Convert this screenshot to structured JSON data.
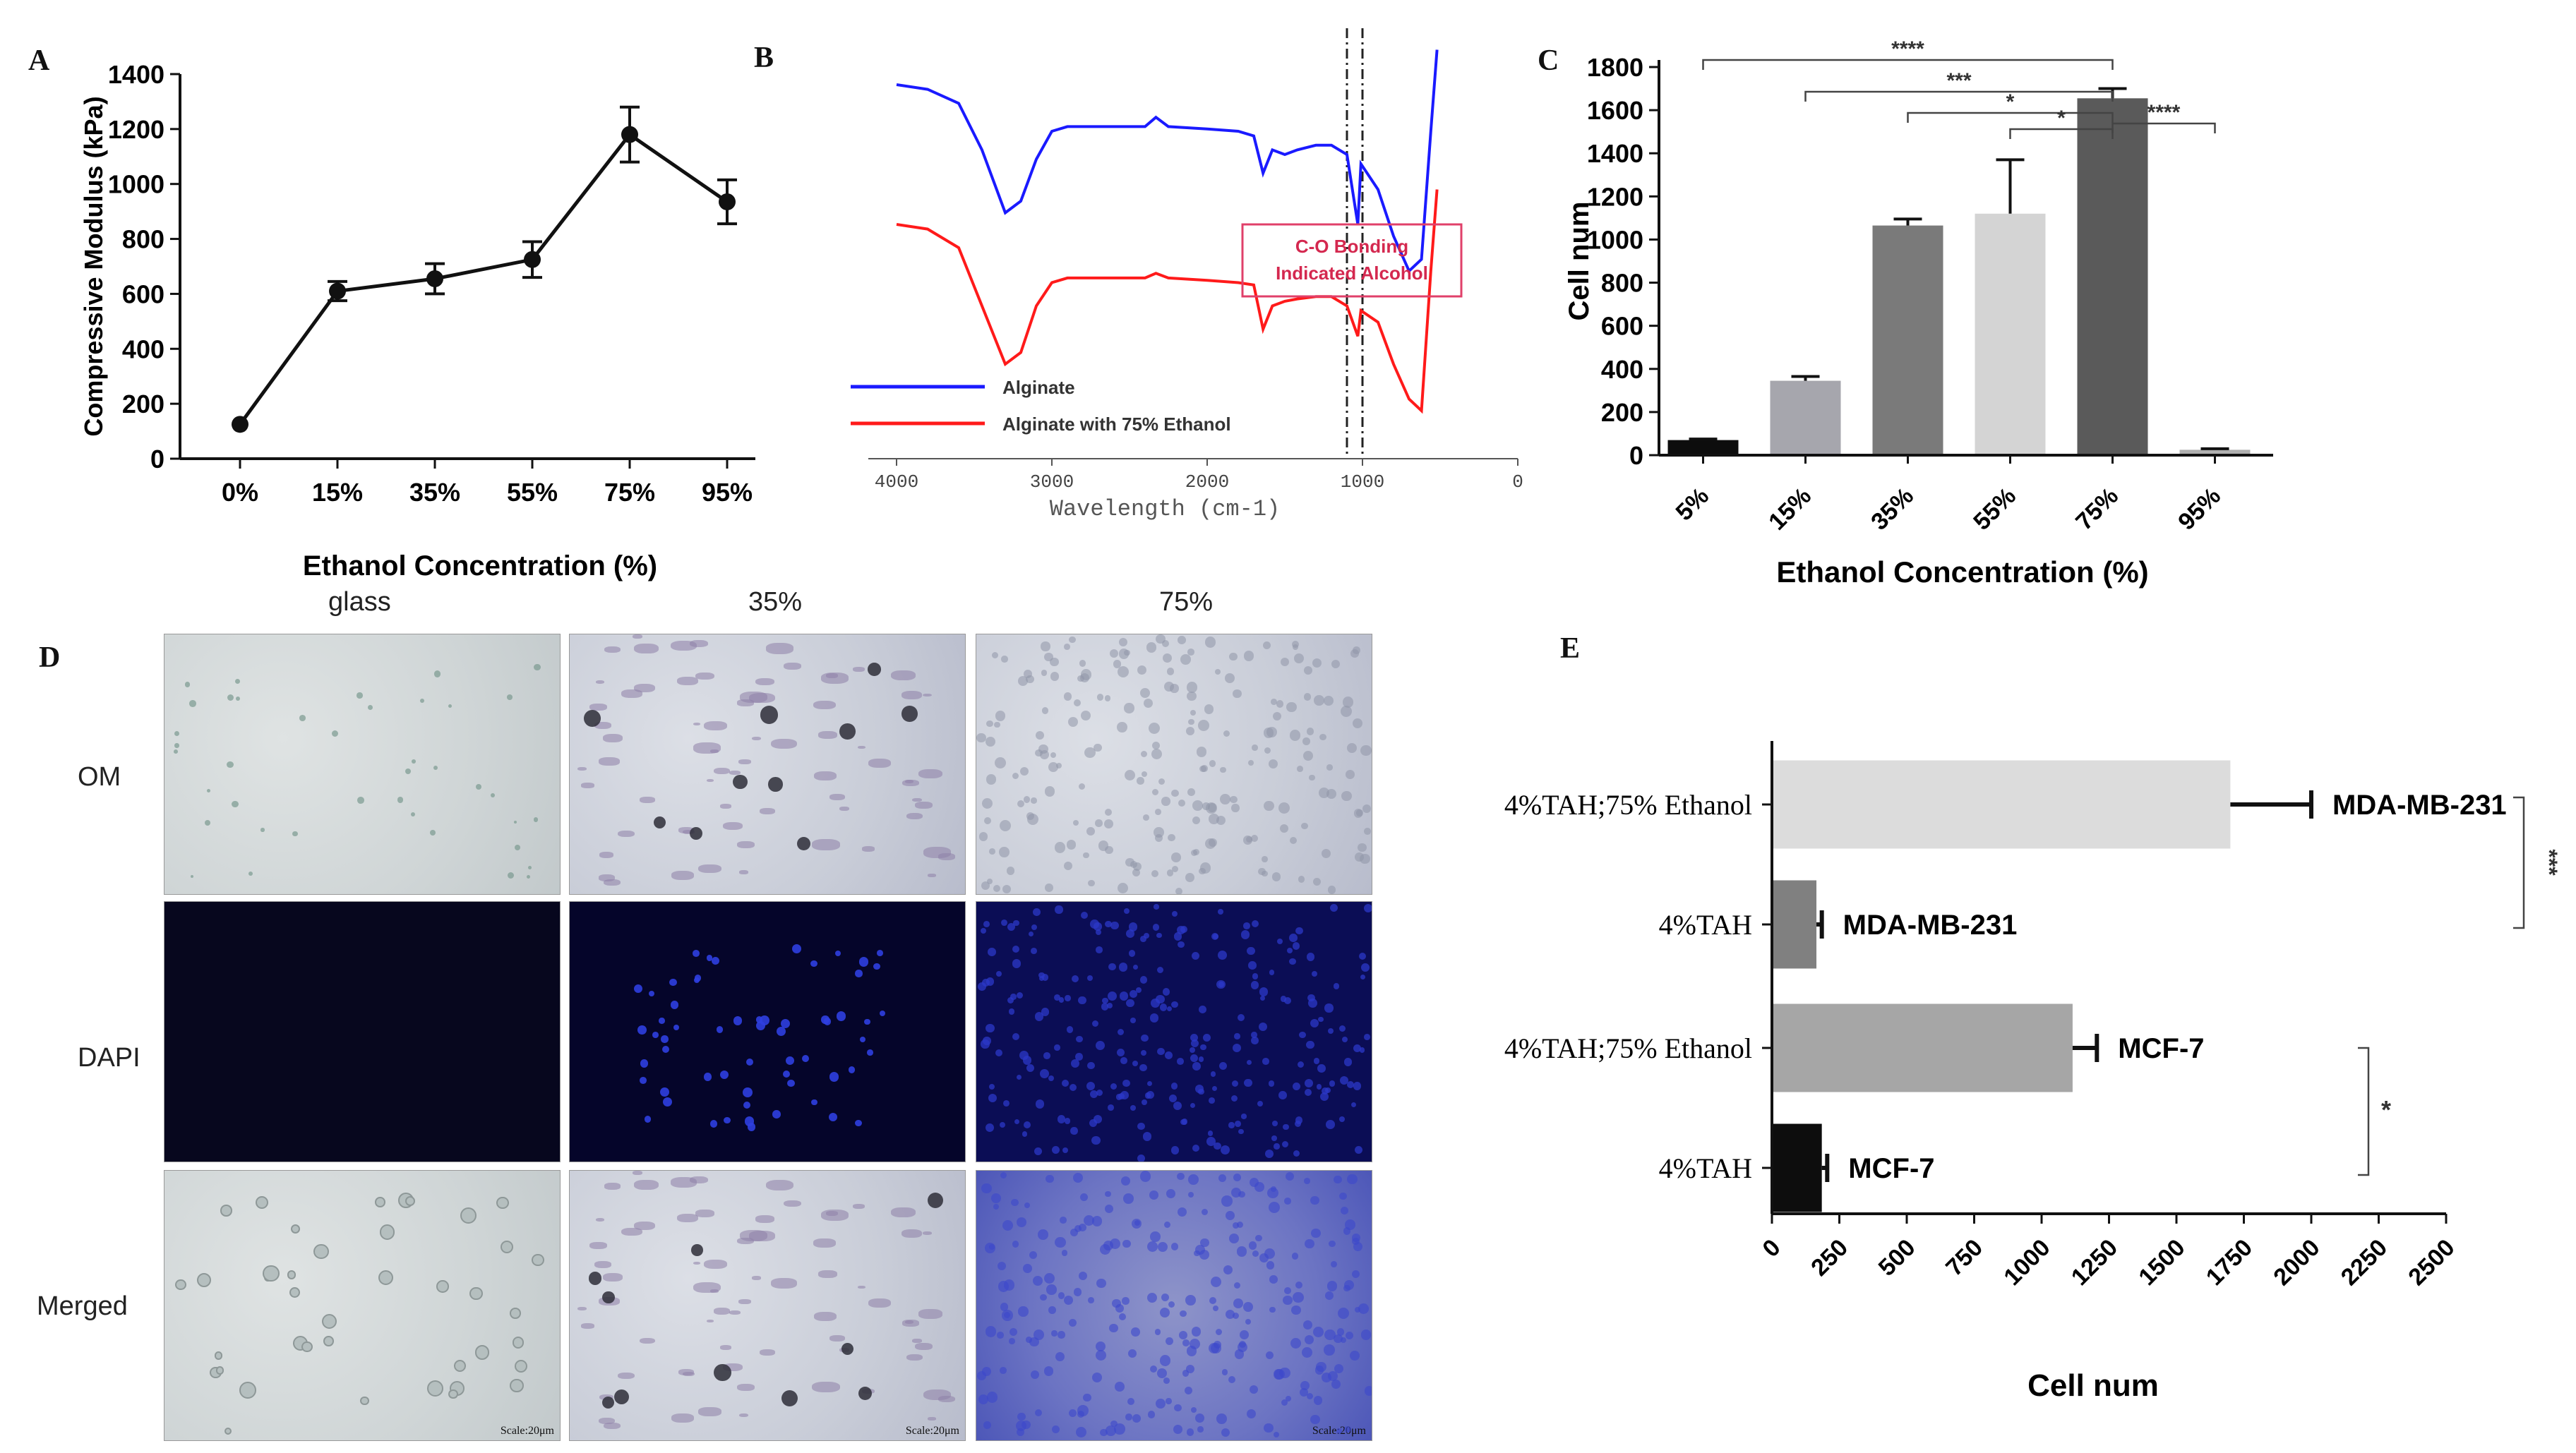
{
  "panels": {
    "A": {
      "letter": "A"
    },
    "B": {
      "letter": "B"
    },
    "C": {
      "letter": "C"
    },
    "D": {
      "letter": "D"
    },
    "E": {
      "letter": "E"
    }
  },
  "chart_data": [
    {
      "panel": "A",
      "type": "line",
      "title": "",
      "xlabel": "Ethanol  Concentration (%)",
      "ylabel": "Compressive Modulus (kPa)",
      "categories": [
        "0%",
        "15%",
        "35%",
        "55%",
        "75%",
        "95%"
      ],
      "values": [
        125,
        610,
        655,
        725,
        1180,
        935
      ],
      "errors": [
        0,
        35,
        55,
        65,
        100,
        80
      ],
      "ylim": [
        0,
        1400
      ],
      "yticks": [
        0,
        200,
        400,
        600,
        800,
        1000,
        1200,
        1400
      ],
      "color": "#111111"
    },
    {
      "panel": "B",
      "type": "line",
      "title": "",
      "xlabel": "Wavelength (cm-1)",
      "ylabel": "",
      "xlim": [
        4000,
        0
      ],
      "xticks": [
        4000,
        3000,
        2000,
        1000,
        0
      ],
      "series": [
        {
          "name": "Alginate",
          "color": "#1a1aff",
          "x": [
            4000,
            3800,
            3600,
            3450,
            3300,
            3200,
            3100,
            3000,
            2900,
            2800,
            2500,
            2400,
            2330,
            2250,
            2000,
            1800,
            1700,
            1640,
            1580,
            1500,
            1420,
            1300,
            1200,
            1100,
            1030,
            1010,
            900,
            800,
            700,
            620,
            560,
            520
          ],
          "y": [
            1.0,
            0.98,
            0.92,
            0.72,
            0.45,
            0.5,
            0.68,
            0.8,
            0.82,
            0.82,
            0.82,
            0.82,
            0.86,
            0.82,
            0.81,
            0.8,
            0.78,
            0.62,
            0.72,
            0.7,
            0.72,
            0.74,
            0.74,
            0.7,
            0.4,
            0.66,
            0.55,
            0.35,
            0.2,
            0.25,
            0.8,
            1.15
          ]
        },
        {
          "name": "Alginate with 75% Ethanol",
          "color": "#ff1a1a",
          "x": [
            4000,
            3800,
            3600,
            3450,
            3300,
            3200,
            3100,
            3000,
            2900,
            2800,
            2500,
            2400,
            2330,
            2250,
            2000,
            1800,
            1700,
            1640,
            1580,
            1500,
            1420,
            1300,
            1200,
            1100,
            1030,
            1010,
            900,
            800,
            700,
            620,
            560,
            520
          ],
          "y": [
            0.4,
            0.38,
            0.3,
            0.05,
            -0.2,
            -0.15,
            0.05,
            0.15,
            0.17,
            0.17,
            0.17,
            0.17,
            0.19,
            0.17,
            0.16,
            0.15,
            0.14,
            -0.05,
            0.05,
            0.07,
            0.08,
            0.09,
            0.09,
            0.05,
            -0.08,
            0.03,
            -0.02,
            -0.2,
            -0.35,
            -0.4,
            0.2,
            0.55
          ]
        }
      ],
      "annotation": "C-O Bonding Indicated Alcohol",
      "reference_lines_x": [
        1100,
        1000
      ]
    },
    {
      "panel": "C",
      "type": "bar",
      "title": "",
      "xlabel": "Ethanol  Concentration (%)",
      "ylabel": "Cell num",
      "categories": [
        "5%",
        "15%",
        "35%",
        "55%",
        "75%",
        "95%"
      ],
      "values": [
        70,
        345,
        1065,
        1120,
        1655,
        25
      ],
      "errors": [
        5,
        20,
        30,
        250,
        45,
        5
      ],
      "colors": [
        "#0d0d0d",
        "#a6a6ad",
        "#7a7a7a",
        "#d4d4d4",
        "#5a5a5a",
        "#b0b0b0"
      ],
      "ylim": [
        0,
        1800
      ],
      "yticks": [
        0,
        200,
        400,
        600,
        800,
        1000,
        1200,
        1400,
        1600,
        1800
      ],
      "significance": [
        {
          "from": 0,
          "to": 4,
          "label": "****"
        },
        {
          "from": 1,
          "to": 4,
          "label": "***"
        },
        {
          "from": 2,
          "to": 4,
          "label": "*"
        },
        {
          "from": 3,
          "to": 4,
          "label": "*"
        },
        {
          "from": 4,
          "to": 5,
          "label": "****"
        }
      ]
    },
    {
      "panel": "E",
      "type": "bar",
      "orientation": "horizontal",
      "title": "",
      "xlabel": "Cell num",
      "ylabel": "",
      "categories": [
        "4%TAH;75% Ethanol",
        "4%TAH",
        "4%TAH;75% Ethanol",
        "4%TAH"
      ],
      "values": [
        1700,
        165,
        1115,
        185
      ],
      "errors": [
        300,
        20,
        90,
        20
      ],
      "bar_labels": [
        "MDA-MB-231",
        "MDA-MB-231",
        "MCF-7",
        "MCF-7"
      ],
      "colors": [
        "#dcdcdc",
        "#808080",
        "#a6a6a6",
        "#0d0d0d"
      ],
      "xlim": [
        0,
        2500
      ],
      "xticks": [
        0,
        250,
        500,
        750,
        1000,
        1250,
        1500,
        1750,
        2000,
        2250,
        2500
      ],
      "significance": [
        {
          "rows": [
            0,
            1
          ],
          "label": "***"
        },
        {
          "rows": [
            2,
            3
          ],
          "label": "*"
        }
      ]
    }
  ],
  "micrographs": {
    "columns": [
      "glass",
      "35%",
      "75%"
    ],
    "rows": [
      "OM",
      "DAPI",
      "Merged"
    ],
    "scale_label": "Scale:20μm"
  }
}
